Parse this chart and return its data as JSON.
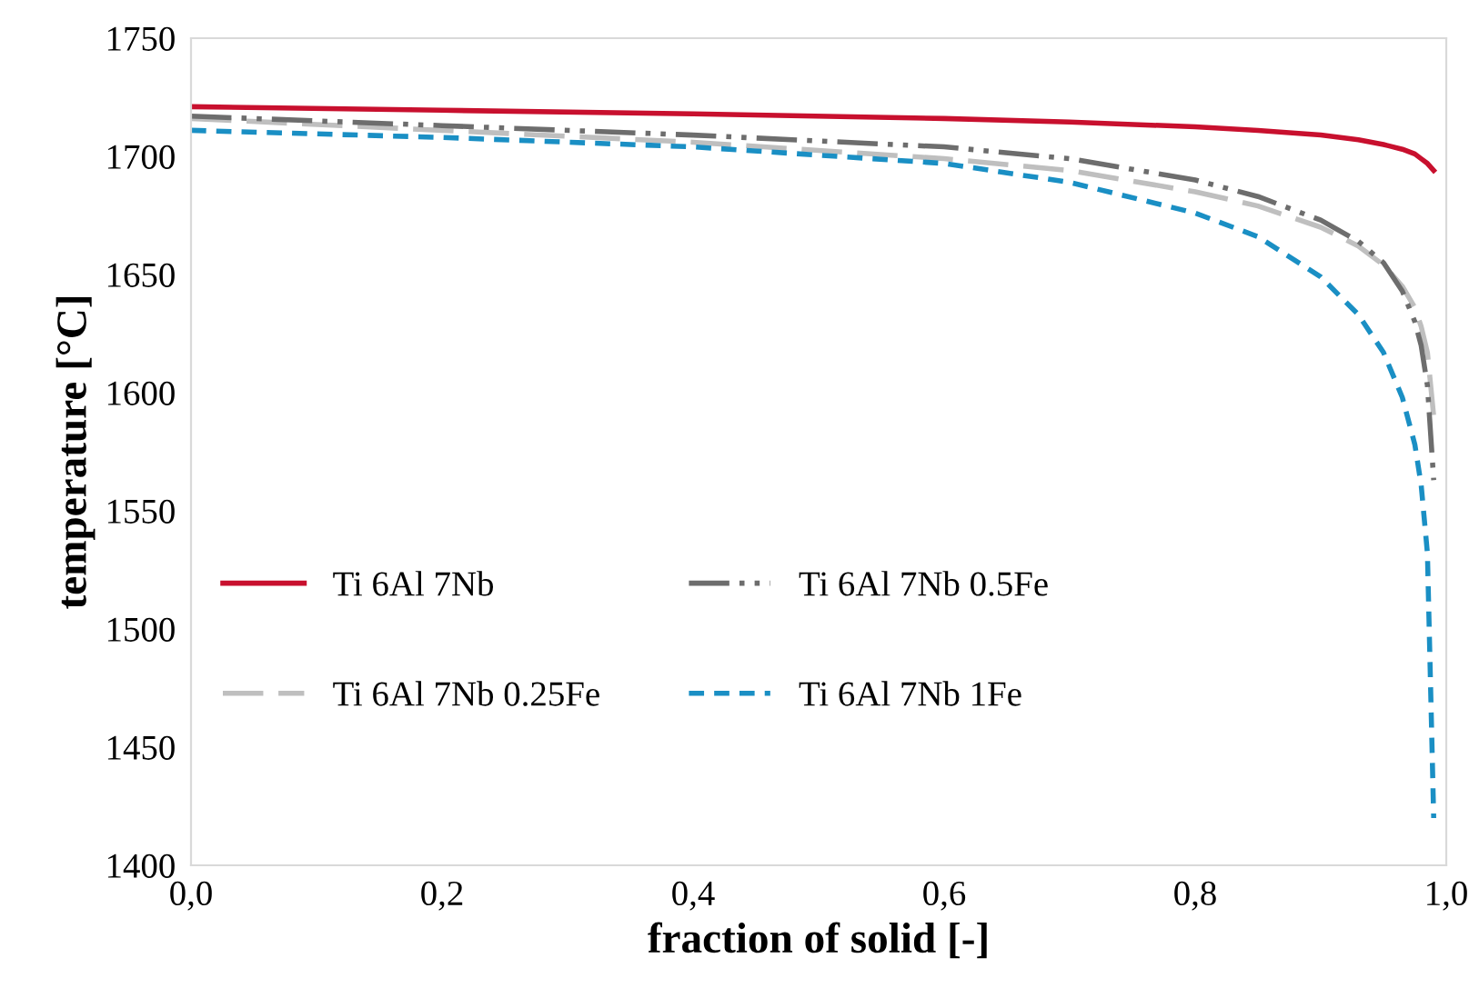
{
  "chart_data": {
    "type": "line",
    "xlabel": "fraction of solid [-]",
    "ylabel": "temperature [°C]",
    "xlim": [
      0,
      1
    ],
    "xticks": [
      {
        "value": 0,
        "label": "0,0"
      },
      {
        "value": 0.2,
        "label": "0,2"
      },
      {
        "value": 0.4,
        "label": "0,4"
      },
      {
        "value": 0.6,
        "label": "0,6"
      },
      {
        "value": 0.8,
        "label": "0,8"
      },
      {
        "value": 1,
        "label": "1,0"
      }
    ],
    "ylim": [
      1400,
      1750
    ],
    "yticks": [
      1400,
      1450,
      1500,
      1550,
      1600,
      1650,
      1700,
      1750
    ],
    "grid": false,
    "legend": "left",
    "marker": "none",
    "x": [
      0,
      0.2,
      0.4,
      0.6,
      0.7,
      0.8,
      0.85,
      0.9,
      0.93,
      0.95,
      0.965,
      0.975,
      0.98,
      0.985,
      0.99
    ],
    "series": [
      {
        "name": "Ti 6Al 7Nb",
        "color": "#c8102e",
        "line_style": "solid",
        "values": [
          1721,
          1719.5,
          1718,
          1716,
          1714.5,
          1712.5,
          1711,
          1709,
          1707,
          1705,
          1703,
          1701,
          1699,
          1697,
          1694
        ]
      },
      {
        "name": "Ti 6Al 7Nb 0.25Fe",
        "color": "#bfbfbf",
        "line_style": "dashed",
        "values": [
          1716,
          1711,
          1706,
          1699,
          1694,
          1685,
          1679,
          1670,
          1662,
          1654,
          1645,
          1636,
          1628,
          1617,
          1590
        ]
      },
      {
        "name": "Ti 6Al 7Nb 0.5Fe",
        "color": "#6d6d6d",
        "line_style": "dashdotdot",
        "values": [
          1717,
          1713,
          1709,
          1704,
          1699,
          1690,
          1683,
          1673,
          1664,
          1655,
          1643,
          1630,
          1620,
          1603,
          1563
        ]
      },
      {
        "name": "Ti 6Al 7Nb 1Fe",
        "color": "#1a8fc4",
        "line_style": "dotted",
        "values": [
          1711,
          1708,
          1704,
          1697,
          1689,
          1676,
          1666,
          1649,
          1633,
          1617,
          1598,
          1578,
          1561,
          1532,
          1420
        ]
      }
    ]
  }
}
